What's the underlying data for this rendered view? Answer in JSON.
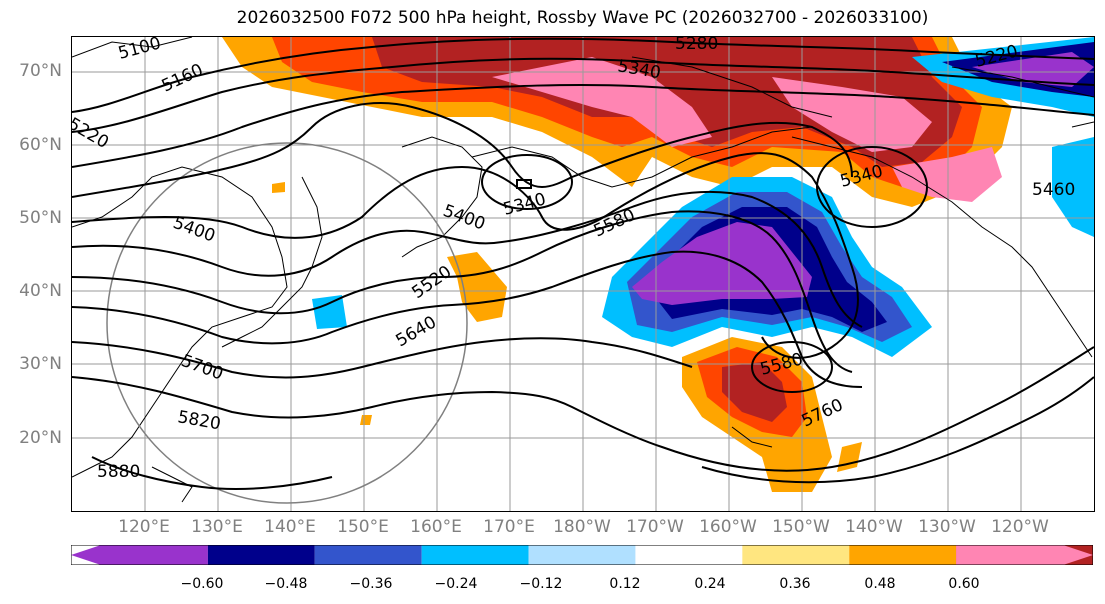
{
  "title": "2026032500 F072 500 hPa height, Rossby Wave PC (2026032700 - 2026033100)",
  "lat_labels": [
    "70°N",
    "60°N",
    "50°N",
    "40°N",
    "30°N",
    "20°N"
  ],
  "lon_labels": [
    "120°E",
    "130°E",
    "140°E",
    "150°E",
    "160°E",
    "170°E",
    "180°W",
    "170°W",
    "160°W",
    "150°W",
    "140°W",
    "130°W",
    "120°W"
  ],
  "contour_labels": [
    "5100",
    "5160",
    "5220",
    "5280",
    "5340",
    "5340",
    "5340",
    "5400",
    "5400",
    "5460",
    "5520",
    "5580",
    "5580",
    "5640",
    "5700",
    "5760",
    "5820",
    "5880",
    "5220"
  ],
  "colorbar": {
    "colors": [
      "#9933cc",
      "#00008b",
      "#3355cc",
      "#00bfff",
      "#b0e0ff",
      "#ffffff",
      "#ffe680",
      "#ffa500",
      "#ff4500",
      "#b22222",
      "#ff85b3"
    ],
    "ticks": [
      "−0.60",
      "−0.48",
      "−0.36",
      "−0.24",
      "−0.12",
      "0.12",
      "0.24",
      "0.36",
      "0.48",
      "0.60"
    ]
  }
}
